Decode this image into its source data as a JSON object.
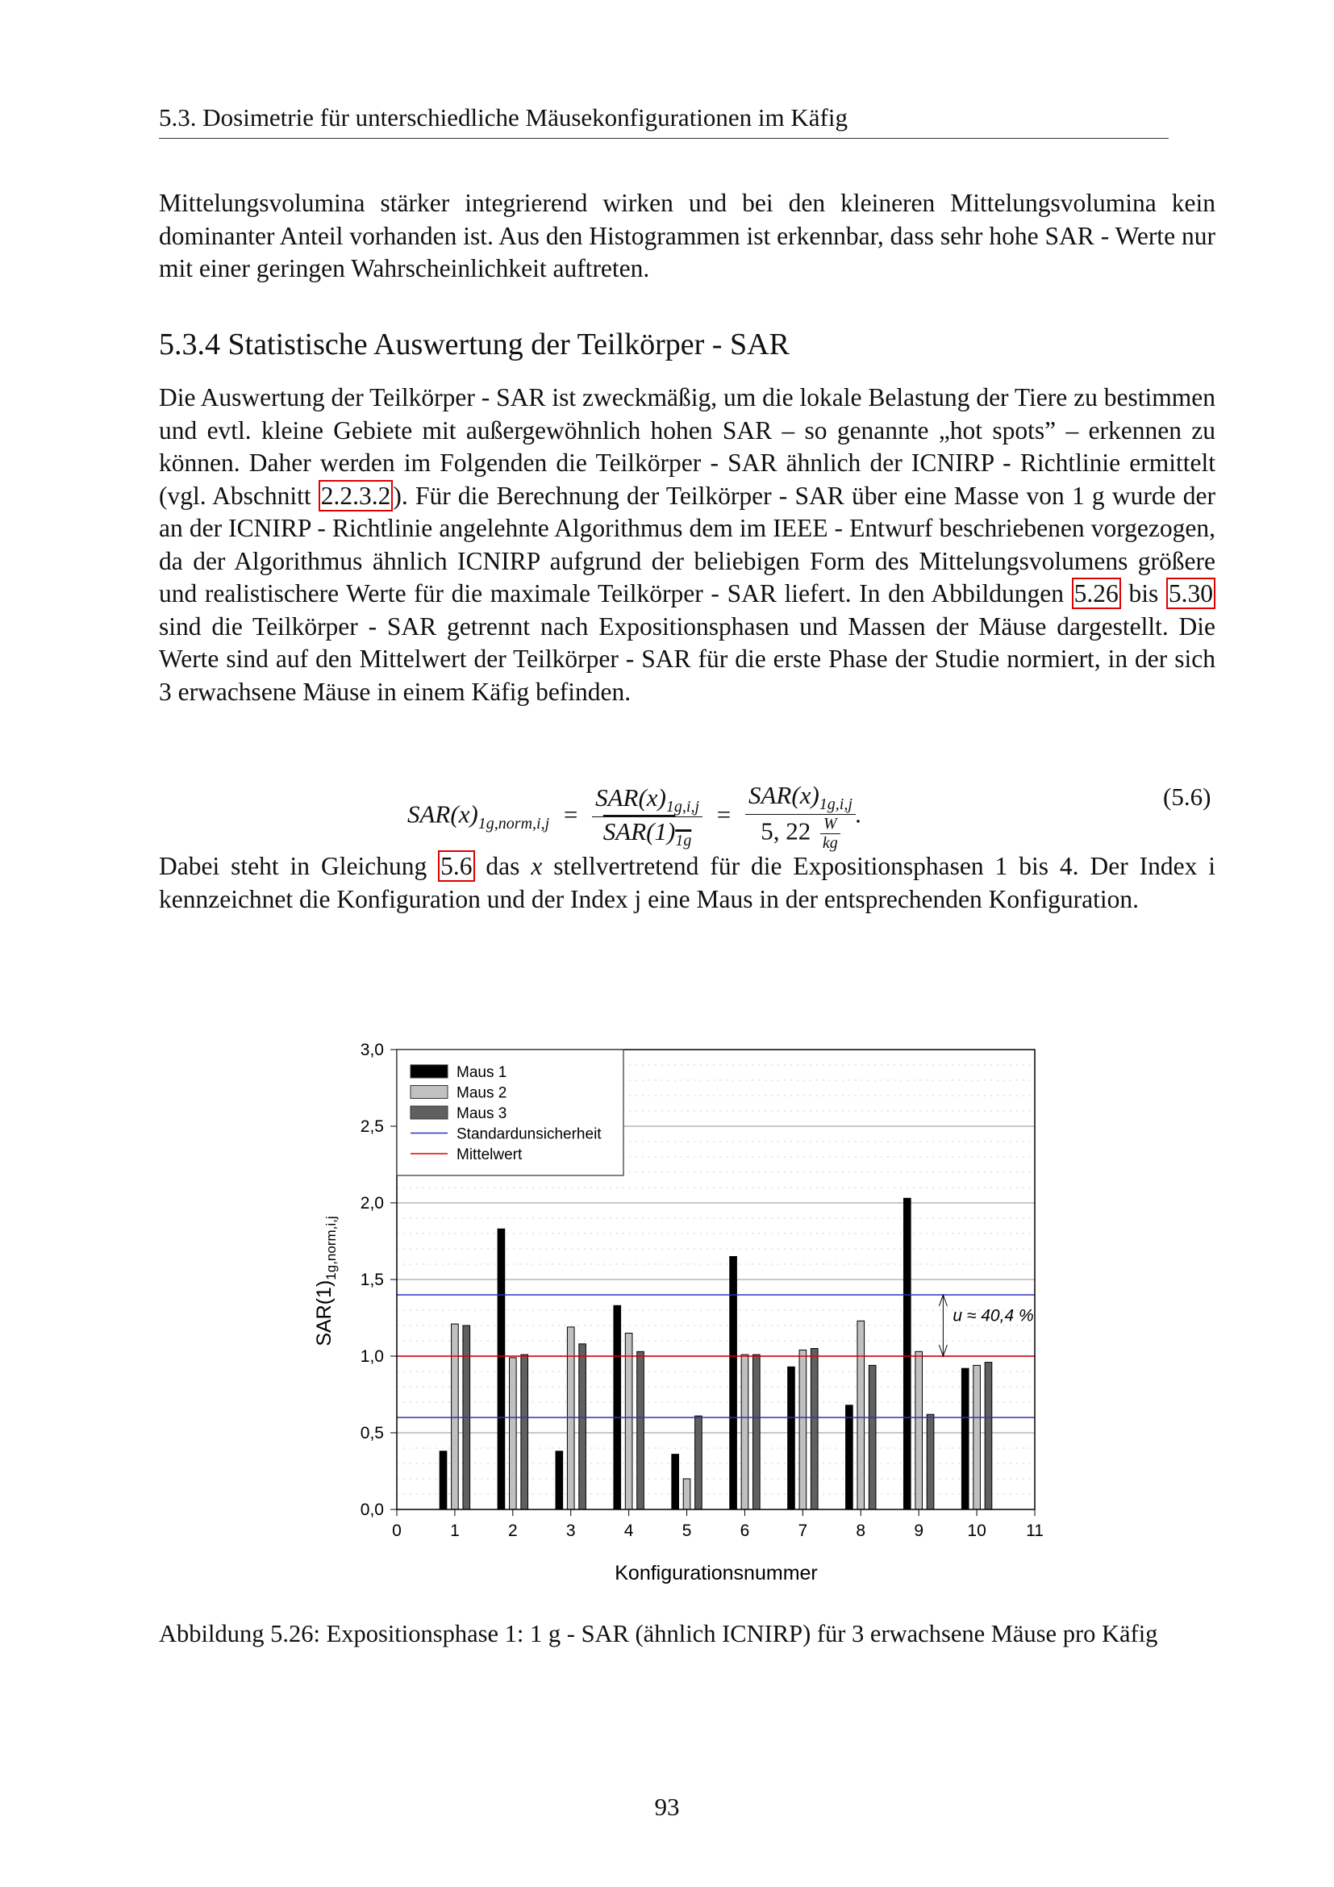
{
  "header": {
    "section": "5.3.  Dosimetrie für unterschiedliche Mäusekonfigurationen im Käfig"
  },
  "para1": "Mittelungsvolumina stärker integrierend wirken und bei den kleineren Mittelungsvolumina kein dominanter Anteil vorhanden ist. Aus den Histogrammen ist erkennbar, dass sehr hohe SAR - Werte nur mit einer geringen Wahrscheinlichkeit auftreten.",
  "heading": "5.3.4  Statistische Auswertung der Teilkörper - SAR",
  "para2": {
    "t1": "Die Auswertung der Teilkörper - SAR ist zweckmäßig, um die lokale Belastung der Tiere zu bestimmen und evtl. kleine Gebiete mit außergewöhnlich hohen SAR – so genannte „hot spots” – erkennen zu können. Daher werden im Folgenden die Teilkörper - SAR ähnlich der ICNIRP - Richtlinie ermittelt (vgl. Abschnitt ",
    "ref1": "2.2.3.2",
    "t2": "). Für die Berechnung der Teilkörper - SAR über eine Masse von 1 g wurde der an der ICNIRP - Richtlinie angelehnte Algorithmus dem im IEEE - Entwurf beschriebenen vorgezogen, da der Algorithmus ähnlich ICNIRP aufgrund der beliebigen Form des Mittelungsvolumens größere und realistischere Werte für die maximale Teilkörper - SAR liefert. In den Abbildungen ",
    "ref2": "5.26",
    "t3": " bis ",
    "ref3": "5.30",
    "t4": " sind die Teilkörper - SAR getrennt nach Expositionsphasen und Massen der Mäuse dargestellt. Die Werte sind auf den Mittelwert der Teilkörper - SAR für die erste Phase der Studie normiert, in der sich 3 erwachsene Mäuse in einem Käfig befinden."
  },
  "equation": {
    "lhs": "SAR(x)",
    "lhs_sub": "1g,norm,i,j",
    "eq": "=",
    "num": "SAR(x)",
    "num_sub": "1g,i,j",
    "den": "SAR(1)",
    "den_sub": "1g",
    "den2": "5, 22",
    "unit_num": "W",
    "unit_den": "kg",
    "number": "(5.6)"
  },
  "para3": {
    "t1": "Dabei steht in Gleichung ",
    "ref": "5.6",
    "t2": " das ",
    "x": "x",
    "t3": " stellvertretend für die Expositionsphasen 1 bis 4. Der Index i kennzeichnet die Konfiguration und der Index j eine Maus in der entsprechenden Konfiguration."
  },
  "chart_data": {
    "type": "bar",
    "xlabel": "Konfigurationsnummer",
    "ylabel": "SAR(1)",
    "ylabel_sub": "1g,norm,i,j",
    "xlim": [
      0,
      11
    ],
    "ylim": [
      0,
      3.0
    ],
    "xticks": [
      "0",
      "1",
      "2",
      "3",
      "4",
      "5",
      "6",
      "7",
      "8",
      "9",
      "10",
      "11"
    ],
    "yticks": [
      "0,0",
      "0,5",
      "1,0",
      "1,5",
      "2,0",
      "2,5",
      "3,0"
    ],
    "grid": true,
    "legend_position": "top-left",
    "categories": [
      1,
      2,
      3,
      4,
      5,
      6,
      7,
      8,
      9,
      10
    ],
    "series": [
      {
        "name": "Maus 1",
        "color": "#000000",
        "values": [
          0.38,
          1.83,
          0.38,
          1.33,
          0.36,
          1.65,
          0.93,
          0.68,
          2.03,
          0.92
        ]
      },
      {
        "name": "Maus 2",
        "color": "#c0c0c0",
        "values": [
          1.21,
          0.99,
          1.19,
          1.15,
          0.2,
          1.01,
          1.04,
          1.23,
          1.03,
          0.94
        ]
      },
      {
        "name": "Maus 3",
        "color": "#606060",
        "values": [
          1.2,
          1.01,
          1.08,
          1.03,
          0.61,
          1.01,
          1.05,
          0.94,
          0.62,
          0.96
        ]
      }
    ],
    "lines": [
      {
        "name": "Standardunsicherheit",
        "color": "#3030c0",
        "values": [
          1.4,
          0.6
        ]
      },
      {
        "name": "Mittelwert",
        "color": "#e00000",
        "values": [
          1.0
        ]
      }
    ],
    "annotation": "u ≈ 40,4 %"
  },
  "caption": "Abbildung 5.26: Expositionsphase 1: 1 g - SAR (ähnlich ICNIRP) für 3 erwachsene Mäuse pro Käfig",
  "page_number": "93"
}
